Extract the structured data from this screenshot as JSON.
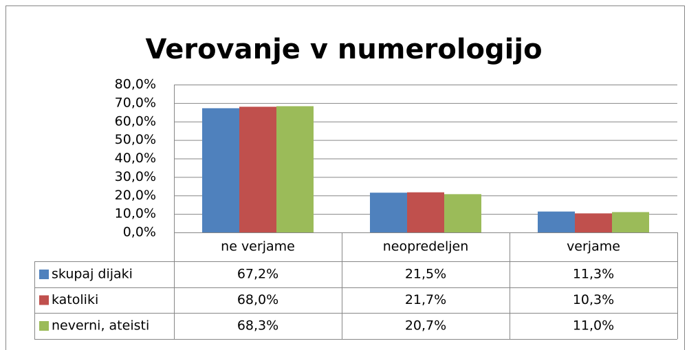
{
  "chart_data": {
    "type": "bar",
    "title": "Verovanje v numerologijo",
    "categories": [
      "ne verjame",
      "neopredeljen",
      "verjame"
    ],
    "series": [
      {
        "name": "skupaj dijaki",
        "color": "#4f81bd",
        "values": [
          67.2,
          21.5,
          11.3
        ],
        "value_labels": [
          "67,2%",
          "21,5%",
          "11,3%"
        ]
      },
      {
        "name": "katoliki",
        "color": "#c0504d",
        "values": [
          68.0,
          21.7,
          10.3
        ],
        "value_labels": [
          "68,0%",
          "21,7%",
          "10,3%"
        ]
      },
      {
        "name": "neverni, ateisti",
        "color": "#9bbb59",
        "values": [
          68.3,
          20.7,
          11.0
        ],
        "value_labels": [
          "68,3%",
          "20,7%",
          "11,0%"
        ]
      }
    ],
    "ylim": [
      0,
      80
    ],
    "yticks": [
      {
        "value": 0,
        "label": "0,0%"
      },
      {
        "value": 10,
        "label": "10,0%"
      },
      {
        "value": 20,
        "label": "20,0%"
      },
      {
        "value": 30,
        "label": "30,0%"
      },
      {
        "value": 40,
        "label": "40,0%"
      },
      {
        "value": 50,
        "label": "50,0%"
      },
      {
        "value": 60,
        "label": "60,0%"
      },
      {
        "value": 70,
        "label": "70,0%"
      },
      {
        "value": 80,
        "label": "80,0%"
      }
    ],
    "grid": true
  }
}
